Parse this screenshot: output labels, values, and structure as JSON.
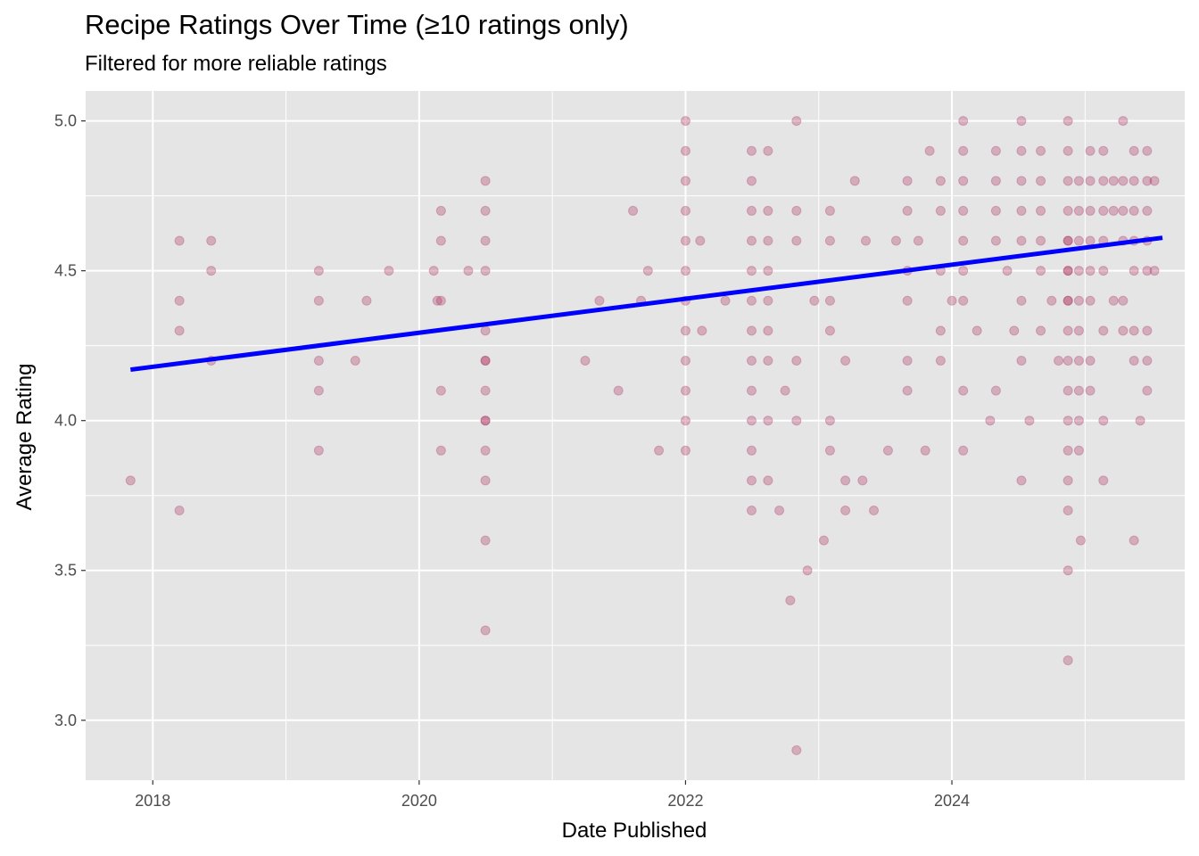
{
  "title": "Recipe Ratings Over Time (≥10 ratings only)",
  "subtitle": "Filtered for more reliable ratings",
  "colors": {
    "panel": "#e5e5e5",
    "grid": "#ffffff",
    "points": "#a8275a",
    "trend": "#0000ff"
  },
  "chart_data": {
    "type": "scatter",
    "title": "Recipe Ratings Over Time (≥10 ratings only)",
    "subtitle": "Filtered for more reliable ratings",
    "xlabel": "Date Published",
    "ylabel": "Average Rating",
    "x_ticks": [
      "2018",
      "2020",
      "2022",
      "2024"
    ],
    "y_ticks": [
      "3.0",
      "3.5",
      "4.0",
      "4.5",
      "5.0"
    ],
    "xlim": [
      "2017-07-01",
      "2025-10-01"
    ],
    "ylim": [
      2.8,
      5.1
    ],
    "grid": true,
    "legend": "none",
    "trend_line": {
      "method": "linear",
      "start": [
        "2017-11-01",
        4.17
      ],
      "end": [
        "2025-08-01",
        4.61
      ]
    },
    "series": [
      {
        "x": [
          "2017-11-01",
          "2018-03-15",
          "2018-03-15",
          "2018-03-15",
          "2018-03-15",
          "2018-06-10",
          "2018-06-10",
          "2018-06-10",
          "2019-04-01",
          "2019-04-01",
          "2019-04-01",
          "2019-04-01",
          "2019-04-01",
          "2019-07-10",
          "2019-08-10",
          "2019-10-10",
          "2020-02-10",
          "2020-02-20",
          "2020-03-01",
          "2020-03-01",
          "2020-03-01",
          "2020-03-01",
          "2020-03-01",
          "2020-05-15",
          "2020-07-01",
          "2020-07-01",
          "2020-07-01",
          "2020-07-01",
          "2020-07-01",
          "2020-07-01",
          "2020-07-01",
          "2020-07-01",
          "2020-07-01",
          "2020-07-01",
          "2020-07-01",
          "2020-07-01",
          "2020-07-01",
          "2020-07-01",
          "2021-04-01",
          "2021-05-10",
          "2021-07-01",
          "2021-08-10",
          "2021-09-01",
          "2021-09-20",
          "2021-10-20",
          "2022-01-01",
          "2022-01-01",
          "2022-01-01",
          "2022-01-01",
          "2022-01-01",
          "2022-01-01",
          "2022-01-01",
          "2022-01-01",
          "2022-01-01",
          "2022-01-01",
          "2022-01-01",
          "2022-01-01",
          "2022-02-10",
          "2022-02-15",
          "2022-04-20",
          "2022-07-01",
          "2022-07-01",
          "2022-07-01",
          "2022-07-01",
          "2022-07-01",
          "2022-07-01",
          "2022-07-01",
          "2022-07-01",
          "2022-07-01",
          "2022-07-01",
          "2022-07-01",
          "2022-07-01",
          "2022-07-01",
          "2022-08-15",
          "2022-08-15",
          "2022-08-15",
          "2022-08-15",
          "2022-08-15",
          "2022-08-15",
          "2022-08-15",
          "2022-08-15",
          "2022-08-15",
          "2022-09-15",
          "2022-10-01",
          "2022-10-15",
          "2022-11-01",
          "2022-11-01",
          "2022-11-01",
          "2022-11-01",
          "2022-11-01",
          "2022-11-01",
          "2022-12-01",
          "2022-12-20",
          "2023-01-15",
          "2023-02-01",
          "2023-02-01",
          "2023-02-01",
          "2023-02-01",
          "2023-02-01",
          "2023-02-01",
          "2023-03-15",
          "2023-03-15",
          "2023-03-15",
          "2023-04-10",
          "2023-05-01",
          "2023-05-10",
          "2023-06-01",
          "2023-07-10",
          "2023-08-01",
          "2023-09-01",
          "2023-09-01",
          "2023-09-01",
          "2023-09-01",
          "2023-09-01",
          "2023-09-01",
          "2023-10-01",
          "2023-10-20",
          "2023-11-01",
          "2023-12-01",
          "2023-12-01",
          "2023-12-01",
          "2023-12-01",
          "2023-12-01",
          "2024-01-01",
          "2024-02-01",
          "2024-02-01",
          "2024-02-01",
          "2024-02-01",
          "2024-02-01",
          "2024-02-01",
          "2024-02-01",
          "2024-02-01",
          "2024-02-01",
          "2024-03-10",
          "2024-04-15",
          "2024-05-01",
          "2024-05-01",
          "2024-05-01",
          "2024-05-01",
          "2024-05-01",
          "2024-06-01",
          "2024-06-20",
          "2024-07-10",
          "2024-07-10",
          "2024-07-10",
          "2024-07-10",
          "2024-07-10",
          "2024-07-10",
          "2024-07-10",
          "2024-07-10",
          "2024-08-01",
          "2024-09-01",
          "2024-09-01",
          "2024-09-01",
          "2024-09-01",
          "2024-09-01",
          "2024-09-01",
          "2024-10-01",
          "2024-10-20",
          "2024-11-15",
          "2024-11-15",
          "2024-11-15",
          "2024-11-15",
          "2024-11-15",
          "2024-11-15",
          "2024-11-15",
          "2024-11-15",
          "2024-11-15",
          "2024-11-15",
          "2024-11-15",
          "2024-11-15",
          "2024-11-15",
          "2024-11-15",
          "2024-11-15",
          "2024-11-15",
          "2024-11-15",
          "2024-11-15",
          "2024-11-15",
          "2024-12-15",
          "2024-12-15",
          "2024-12-15",
          "2024-12-15",
          "2024-12-15",
          "2024-12-15",
          "2024-12-15",
          "2024-12-15",
          "2024-12-15",
          "2024-12-15",
          "2024-12-20",
          "2025-01-15",
          "2025-01-15",
          "2025-01-15",
          "2025-01-15",
          "2025-01-15",
          "2025-01-15",
          "2025-01-15",
          "2025-01-15",
          "2025-02-20",
          "2025-02-20",
          "2025-02-20",
          "2025-02-20",
          "2025-02-20",
          "2025-02-20",
          "2025-02-20",
          "2025-02-20",
          "2025-03-20",
          "2025-03-20",
          "2025-03-20",
          "2025-04-15",
          "2025-04-15",
          "2025-04-15",
          "2025-04-15",
          "2025-04-15",
          "2025-04-15",
          "2025-05-15",
          "2025-05-15",
          "2025-05-15",
          "2025-05-15",
          "2025-05-15",
          "2025-05-15",
          "2025-05-15",
          "2025-05-15",
          "2025-06-01",
          "2025-06-20",
          "2025-06-20",
          "2025-06-20",
          "2025-06-20",
          "2025-06-20",
          "2025-06-20",
          "2025-06-20",
          "2025-06-20",
          "2025-07-10",
          "2025-07-10"
        ],
        "y": [
          3.8,
          4.6,
          4.4,
          4.3,
          3.7,
          4.6,
          4.5,
          4.2,
          4.5,
          4.4,
          4.2,
          4.1,
          3.9,
          4.2,
          4.4,
          4.5,
          4.5,
          4.4,
          4.7,
          4.6,
          4.4,
          4.1,
          3.9,
          4.5,
          4.8,
          4.7,
          4.6,
          4.5,
          4.3,
          4.2,
          4.2,
          4.1,
          4.0,
          3.9,
          3.8,
          3.6,
          3.3,
          4.0,
          4.2,
          4.4,
          4.1,
          4.7,
          4.4,
          4.5,
          3.9,
          5.0,
          4.9,
          4.8,
          4.7,
          4.6,
          4.5,
          4.4,
          4.3,
          4.2,
          4.1,
          4.0,
          3.9,
          4.6,
          4.3,
          4.4,
          4.9,
          4.8,
          4.7,
          4.6,
          4.5,
          4.4,
          4.3,
          4.2,
          4.1,
          4.0,
          3.9,
          3.8,
          3.7,
          4.9,
          4.7,
          4.6,
          4.5,
          4.4,
          4.3,
          4.2,
          4.0,
          3.8,
          3.7,
          4.1,
          3.4,
          5.0,
          4.7,
          4.6,
          4.2,
          4.0,
          2.9,
          3.5,
          4.4,
          3.6,
          4.7,
          4.6,
          4.4,
          4.3,
          4.0,
          3.9,
          4.2,
          3.8,
          3.7,
          4.8,
          3.8,
          4.6,
          3.7,
          3.9,
          4.6,
          4.8,
          4.7,
          4.5,
          4.4,
          4.2,
          4.1,
          4.6,
          3.9,
          4.9,
          4.8,
          4.7,
          4.5,
          4.3,
          4.2,
          4.4,
          5.0,
          4.9,
          4.8,
          4.7,
          4.6,
          4.5,
          4.4,
          4.1,
          3.9,
          4.3,
          4.0,
          4.9,
          4.8,
          4.7,
          4.6,
          4.1,
          4.5,
          4.3,
          5.0,
          4.9,
          4.8,
          4.7,
          4.6,
          4.4,
          4.2,
          3.8,
          4.0,
          4.9,
          4.8,
          4.7,
          4.6,
          4.5,
          4.3,
          4.4,
          4.2,
          5.0,
          4.9,
          4.8,
          4.7,
          4.6,
          4.5,
          4.4,
          4.3,
          4.2,
          4.1,
          4.0,
          3.9,
          3.8,
          3.7,
          3.5,
          3.2,
          4.6,
          4.5,
          4.4,
          4.8,
          4.7,
          4.6,
          4.5,
          4.4,
          4.3,
          4.2,
          4.1,
          4.0,
          3.9,
          3.6,
          4.9,
          4.8,
          4.7,
          4.6,
          4.5,
          4.4,
          4.2,
          4.1,
          4.9,
          4.8,
          4.7,
          4.6,
          4.5,
          4.3,
          4.0,
          3.8,
          4.8,
          4.7,
          4.4,
          5.0,
          4.8,
          4.7,
          4.6,
          4.4,
          4.3,
          4.9,
          4.8,
          4.7,
          4.6,
          4.5,
          4.3,
          4.2,
          3.6,
          4.0,
          4.9,
          4.8,
          4.7,
          4.6,
          4.5,
          4.3,
          4.1,
          4.2,
          4.8,
          4.5
        ]
      }
    ]
  }
}
